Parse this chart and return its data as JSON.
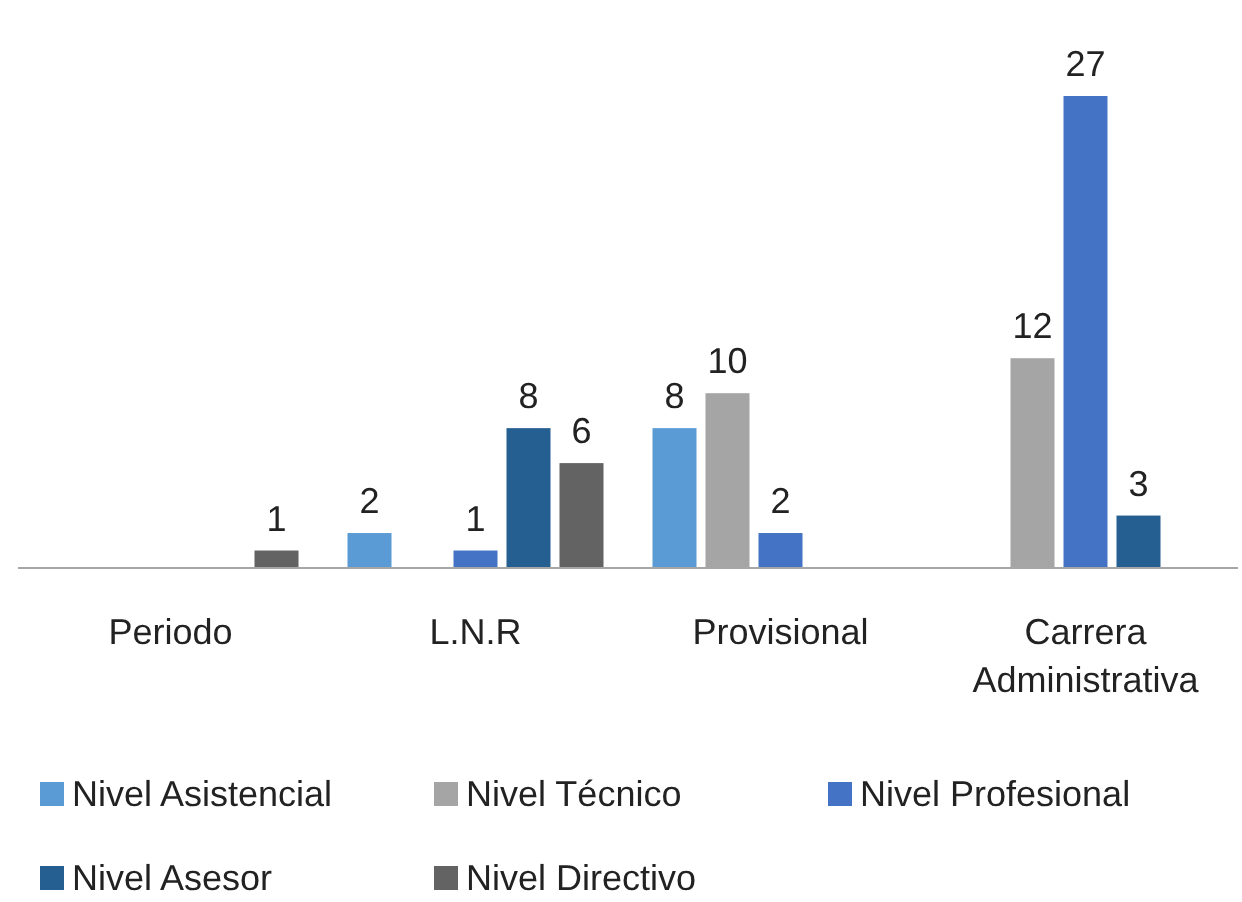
{
  "chart_data": {
    "type": "bar",
    "categories": [
      "Periodo",
      "L.N.R",
      "Provisional",
      "Carrera Administrativa"
    ],
    "series": [
      {
        "name": "Nivel Asistencial",
        "color": "#5b9bd5",
        "values": [
          null,
          2,
          8,
          null
        ]
      },
      {
        "name": "Nivel Técnico",
        "color": "#a5a5a5",
        "values": [
          null,
          null,
          10,
          12
        ]
      },
      {
        "name": "Nivel Profesional",
        "color": "#4472c4",
        "values": [
          null,
          1,
          2,
          27
        ]
      },
      {
        "name": "Nivel Asesor",
        "color": "#255e91",
        "values": [
          null,
          8,
          null,
          3
        ]
      },
      {
        "name": "Nivel Directivo",
        "color": "#636363",
        "values": [
          1,
          6,
          null,
          null
        ]
      }
    ],
    "data_labels": true,
    "legend": "bottom",
    "grid": false
  }
}
